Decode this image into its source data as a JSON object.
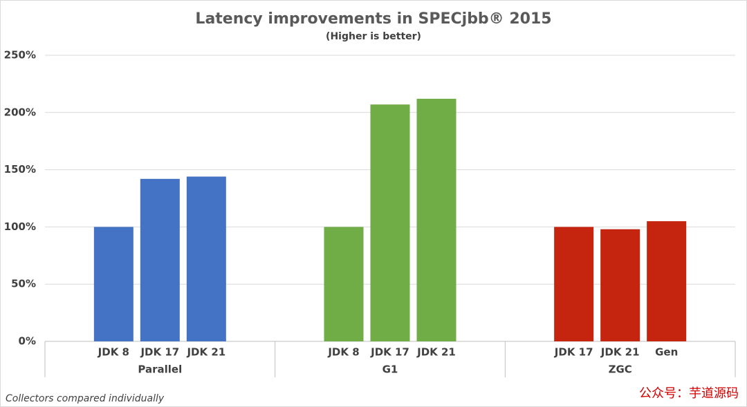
{
  "chart_data": {
    "type": "grouped-bar",
    "title": "Latency improvements in SPECjbb® 2015",
    "subtitle": "(Higher is better)",
    "groups": [
      {
        "name": "Parallel",
        "color": "#4472c4",
        "categories": [
          "JDK 8",
          "JDK 17",
          "JDK 21"
        ],
        "values": [
          100,
          142,
          144
        ]
      },
      {
        "name": "G1",
        "color": "#70ad47",
        "categories": [
          "JDK 8",
          "JDK 17",
          "JDK 21"
        ],
        "values": [
          100,
          207,
          212
        ]
      },
      {
        "name": "ZGC",
        "color": "#c5250f",
        "categories": [
          "JDK 17",
          "JDK 21",
          "Gen"
        ],
        "values": [
          100,
          98,
          105
        ]
      }
    ],
    "ylim": [
      0,
      250
    ],
    "yticks": [
      {
        "value": 0,
        "label": "0%"
      },
      {
        "value": 50,
        "label": "50%"
      },
      {
        "value": 100,
        "label": "100%"
      },
      {
        "value": 150,
        "label": "150%"
      },
      {
        "value": 200,
        "label": "200%"
      },
      {
        "value": 250,
        "label": "250%"
      }
    ],
    "grid": true,
    "footnote": "Collectors compared individually",
    "watermark": "公众号：芋道源码"
  }
}
